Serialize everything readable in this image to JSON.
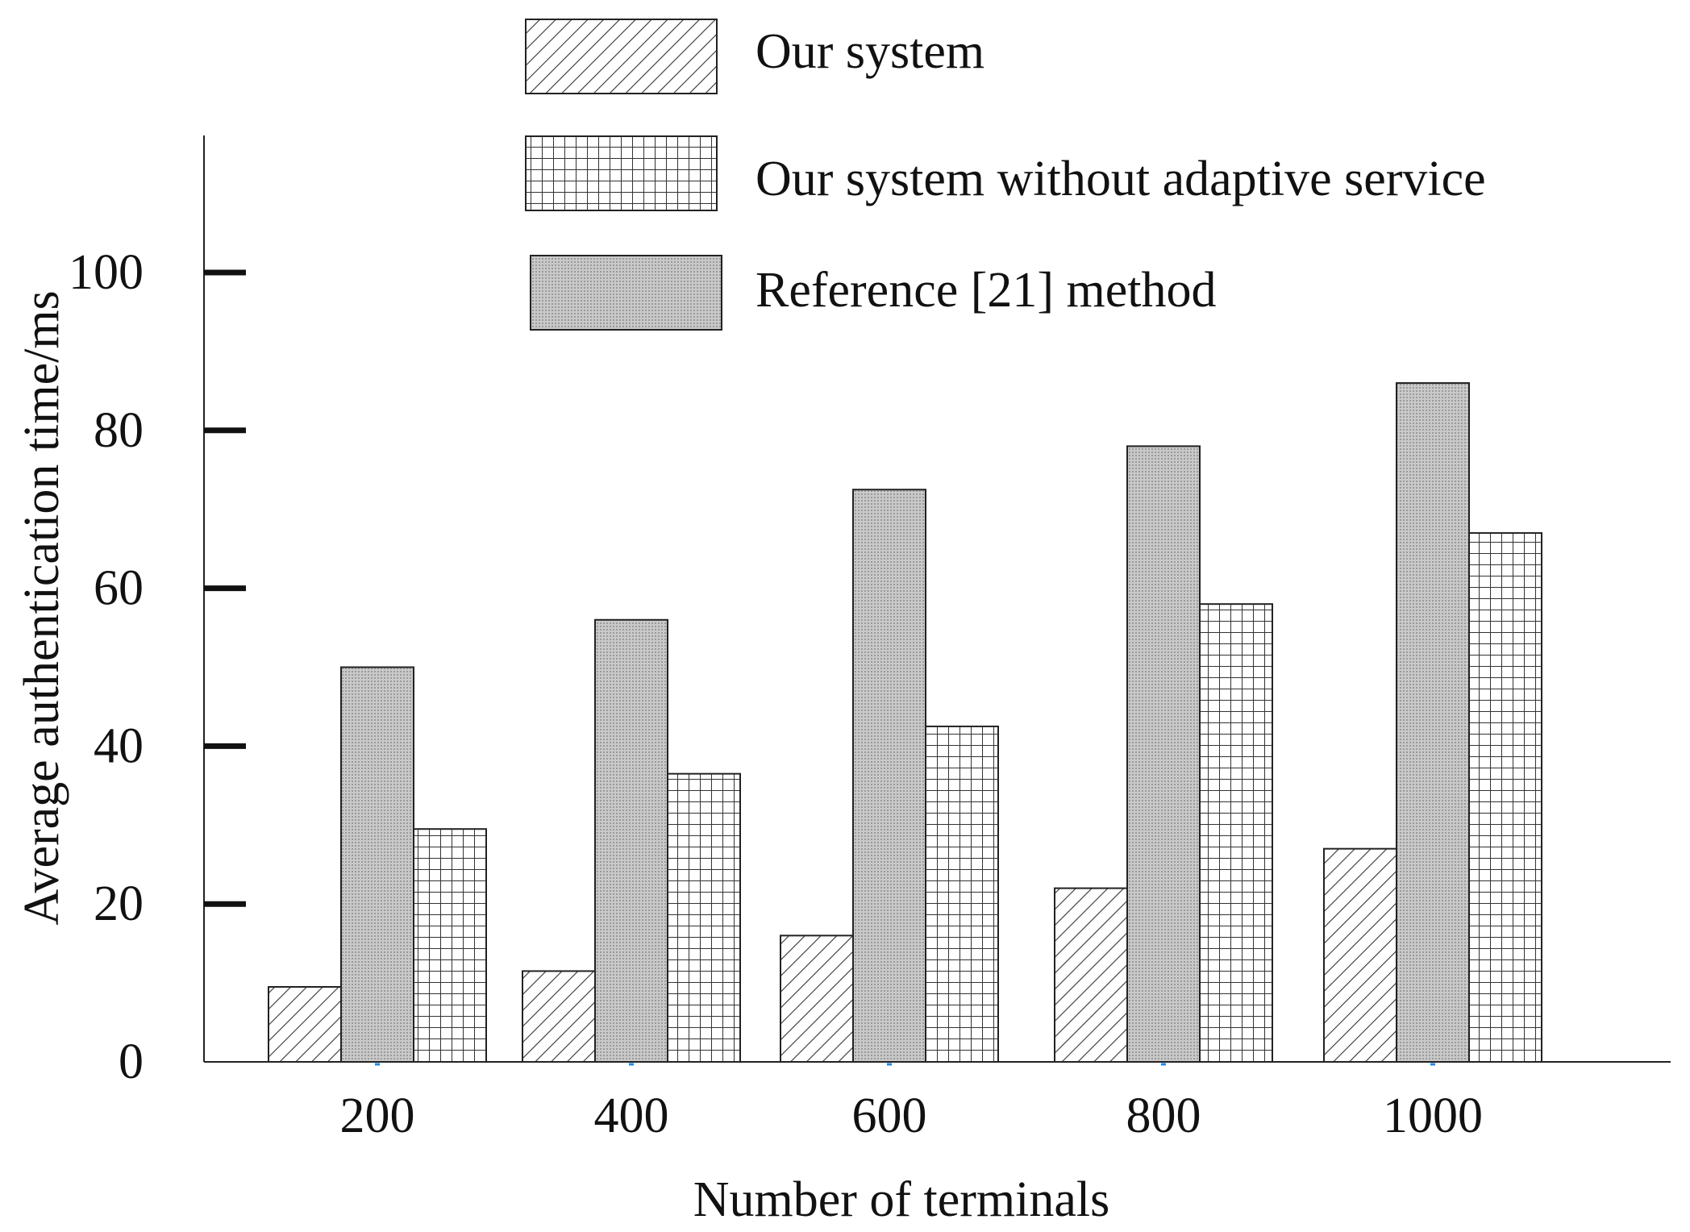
{
  "chart_data": {
    "type": "bar",
    "title": "",
    "xlabel": "Number of terminals",
    "ylabel": "Average authentication time/ms",
    "categories": [
      "200",
      "400",
      "600",
      "800",
      "1000"
    ],
    "series": [
      {
        "name": "Our system",
        "pattern": "diagonal-hatch",
        "values": [
          9.5,
          11.5,
          16,
          22,
          27
        ]
      },
      {
        "name": "Reference [21] method",
        "pattern": "gray-dots",
        "values": [
          50,
          56,
          72.5,
          78,
          86
        ]
      },
      {
        "name": "Our system without adaptive service",
        "pattern": "grid",
        "values": [
          29.5,
          36.5,
          42.5,
          58,
          67
        ]
      }
    ],
    "legend_order": [
      "Our system",
      "Our system without adaptive service",
      "Reference [21] method"
    ],
    "yticks": [
      0,
      20,
      40,
      60,
      80,
      100
    ],
    "ylim": [
      0,
      118
    ],
    "grid": false,
    "legend_position": "top-center"
  }
}
